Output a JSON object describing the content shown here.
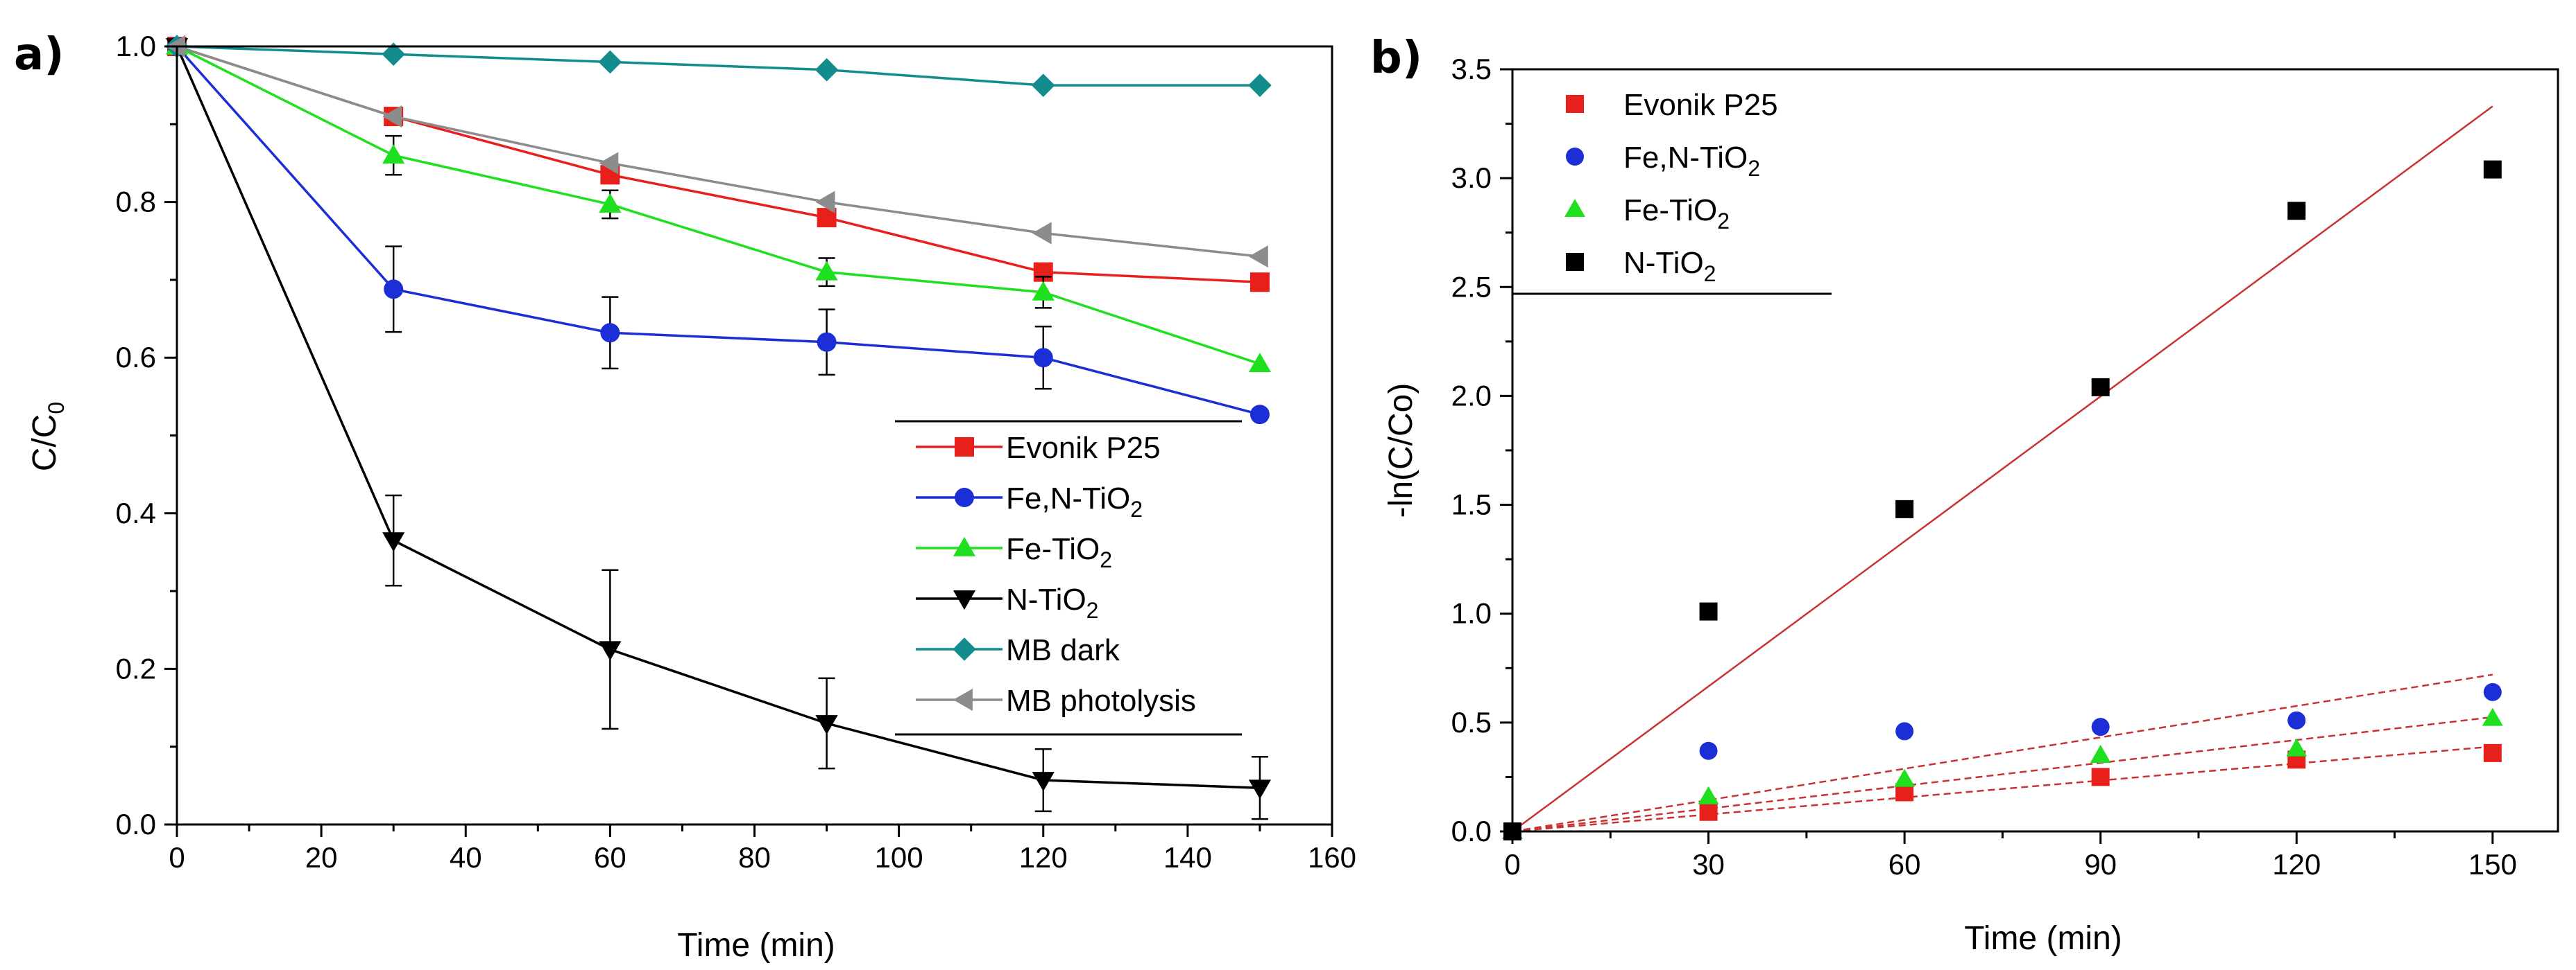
{
  "chart_data": [
    {
      "type": "line",
      "panel_label": "a)",
      "xlabel": "Time (min)",
      "ylabel": {
        "main": "C/C",
        "sub": "0"
      },
      "xlim": [
        0,
        160
      ],
      "ylim": [
        0,
        1.0
      ],
      "xticks": [
        "0",
        "20",
        "40",
        "60",
        "80",
        "100",
        "120",
        "140",
        "160"
      ],
      "yticks": [
        "0.0",
        "0.2",
        "0.4",
        "0.6",
        "0.8",
        "1.0"
      ],
      "legend_position": "center-right",
      "series": [
        {
          "name": "Evonik P25",
          "label": {
            "main": "Evonik P25",
            "sub": ""
          },
          "color": "#e8201c",
          "marker": "square",
          "x": [
            0,
            30,
            60,
            90,
            120,
            150
          ],
          "y": [
            1.0,
            0.91,
            0.835,
            0.78,
            0.71,
            0.697
          ],
          "err": [
            0,
            0,
            0,
            0,
            0,
            0
          ]
        },
        {
          "name": "Fe,N-TiO2",
          "label": {
            "main": "Fe,N-TiO",
            "sub": "2"
          },
          "color": "#1c2fd6",
          "marker": "circle",
          "x": [
            0,
            30,
            60,
            90,
            120,
            150
          ],
          "y": [
            1.0,
            0.688,
            0.632,
            0.62,
            0.6,
            0.527
          ],
          "err": [
            0,
            0.055,
            0.046,
            0.042,
            0.04,
            0
          ]
        },
        {
          "name": "Fe-TiO2",
          "label": {
            "main": "Fe-TiO",
            "sub": "2"
          },
          "color": "#1ee01e",
          "marker": "triangle-up",
          "x": [
            0,
            30,
            60,
            90,
            120,
            150
          ],
          "y": [
            1.0,
            0.86,
            0.797,
            0.71,
            0.684,
            0.592
          ],
          "err": [
            0,
            0.025,
            0.018,
            0.018,
            0.02,
            0
          ]
        },
        {
          "name": "N-TiO2",
          "label": {
            "main": "N-TiO",
            "sub": "2"
          },
          "color": "#000000",
          "marker": "triangle-down",
          "x": [
            0,
            30,
            60,
            90,
            120,
            150
          ],
          "y": [
            1.0,
            0.365,
            0.225,
            0.13,
            0.057,
            0.047
          ],
          "err": [
            0,
            0.058,
            0.102,
            0.058,
            0.04,
            0.04
          ]
        },
        {
          "name": "MB dark",
          "label": {
            "main": "MB dark",
            "sub": ""
          },
          "color": "#128c8c",
          "marker": "diamond",
          "x": [
            0,
            30,
            60,
            90,
            120,
            150
          ],
          "y": [
            1.0,
            0.99,
            0.98,
            0.97,
            0.95,
            0.95
          ],
          "err": [
            0,
            0,
            0,
            0,
            0,
            0
          ]
        },
        {
          "name": "MB photolysis",
          "label": {
            "main": "MB photolysis",
            "sub": ""
          },
          "color": "#8c8c8c",
          "marker": "triangle-left",
          "x": [
            0,
            30,
            60,
            90,
            120,
            150
          ],
          "y": [
            1.0,
            0.91,
            0.85,
            0.8,
            0.76,
            0.73
          ],
          "err": [
            0,
            0,
            0,
            0,
            0,
            0
          ]
        }
      ]
    },
    {
      "type": "scatter",
      "panel_label": "b)",
      "xlabel": "Time (min)",
      "ylabel": {
        "main": "-ln(C/Co)",
        "sub": ""
      },
      "xlim": [
        0,
        160
      ],
      "ylim": [
        0,
        3.5
      ],
      "xticks": [
        "0",
        "30",
        "60",
        "90",
        "120",
        "150"
      ],
      "yticks": [
        "0.0",
        "0.5",
        "1.0",
        "1.5",
        "2.0",
        "2.5",
        "3.0",
        "3.5"
      ],
      "legend_position": "top-left",
      "fit_line_color": "#c83232",
      "series": [
        {
          "name": "Evonik P25",
          "label": {
            "main": "Evonik P25",
            "sub": ""
          },
          "color": "#e8201c",
          "marker": "square",
          "x": [
            0,
            30,
            60,
            90,
            120,
            150
          ],
          "y": [
            0,
            0.09,
            0.18,
            0.25,
            0.33,
            0.36
          ],
          "fit_slope": 0.0026
        },
        {
          "name": "Fe,N-TiO2",
          "label": {
            "main": "Fe,N-TiO",
            "sub": "2"
          },
          "color": "#1c2fd6",
          "marker": "circle",
          "x": [
            0,
            30,
            60,
            90,
            120,
            150
          ],
          "y": [
            0,
            0.37,
            0.46,
            0.48,
            0.51,
            0.64
          ],
          "fit_slope": 0.0048
        },
        {
          "name": "Fe-TiO2",
          "label": {
            "main": "Fe-TiO",
            "sub": "2"
          },
          "color": "#1ee01e",
          "marker": "triangle-up",
          "x": [
            0,
            30,
            60,
            90,
            120,
            150
          ],
          "y": [
            0,
            0.16,
            0.24,
            0.35,
            0.38,
            0.52
          ],
          "fit_slope": 0.0035
        },
        {
          "name": "N-TiO2",
          "label": {
            "main": "N-TiO",
            "sub": "2"
          },
          "color": "#000000",
          "marker": "square",
          "x": [
            0,
            30,
            60,
            90,
            120,
            150
          ],
          "y": [
            0,
            1.01,
            1.48,
            2.04,
            2.85,
            3.04
          ],
          "fit_slope": 0.0222
        }
      ]
    }
  ]
}
